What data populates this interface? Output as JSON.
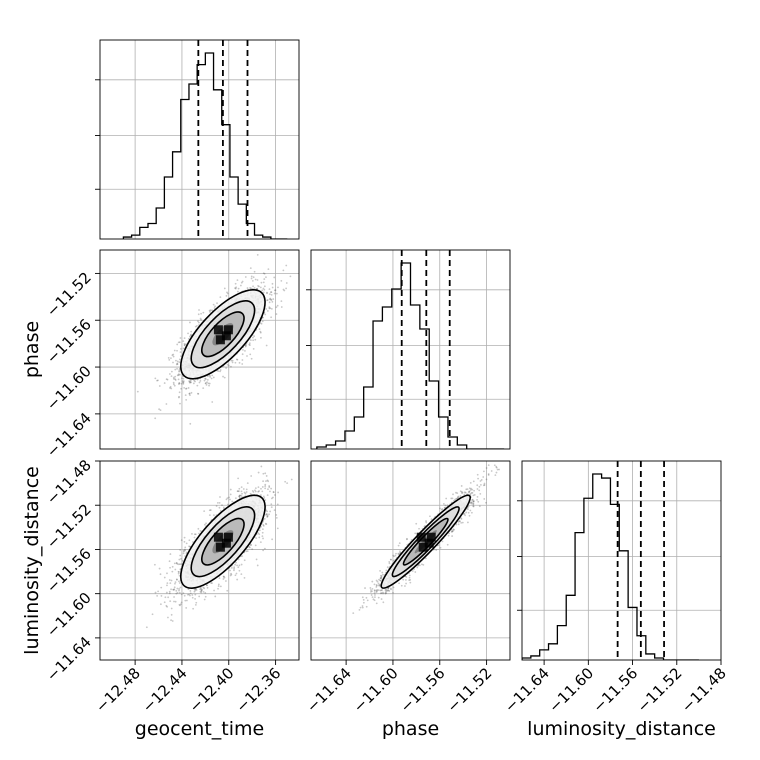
{
  "chart_data": {
    "type": "corner",
    "parameters": [
      "geocent_time",
      "phase",
      "luminosity_distance"
    ],
    "axes": {
      "geocent_time": {
        "range": [
          -12.51,
          -12.34
        ],
        "ticks": [
          -12.48,
          -12.44,
          -12.4,
          -12.36
        ],
        "tick_labels": [
          "−12.48",
          "−12.44",
          "−12.40",
          "−12.36"
        ]
      },
      "phase": {
        "range": [
          -11.67,
          -11.5
        ],
        "ticks": [
          -11.64,
          -11.6,
          -11.56,
          -11.52
        ],
        "tick_labels": [
          "−11.64",
          "−11.60",
          "−11.56",
          "−11.52"
        ]
      },
      "luminosity_distance": {
        "range": [
          -11.66,
          -11.48
        ],
        "ticks": [
          -11.64,
          -11.6,
          -11.56,
          -11.52,
          -11.48
        ],
        "tick_labels": [
          "−11.64",
          "−11.60",
          "−11.56",
          "−11.52",
          "−11.48"
        ]
      }
    },
    "histograms": [
      {
        "parameter": "geocent_time",
        "bin_edges_range": [
          -12.49,
          -12.35
        ],
        "bins": 20,
        "counts": [
          1,
          2,
          6,
          8,
          16,
          32,
          45,
          72,
          80,
          90,
          96,
          77,
          59,
          32,
          18,
          8,
          2,
          1,
          0,
          0
        ],
        "quantiles": [
          -12.426,
          -12.405,
          -12.384
        ]
      },
      {
        "parameter": "phase",
        "bin_edges_range": [
          -11.665,
          -11.505
        ],
        "bins": 20,
        "counts": [
          1,
          2,
          4,
          9,
          16,
          31,
          64,
          71,
          80,
          93,
          72,
          60,
          34,
          16,
          6,
          2,
          0,
          0,
          0,
          0
        ],
        "quantiles": [
          -11.5925,
          -11.5715,
          -11.5515
        ]
      },
      {
        "parameter": "luminosity_distance",
        "bin_edges_range": [
          -11.66,
          -11.5
        ],
        "bins": 20,
        "counts": [
          1,
          2,
          5,
          8,
          17,
          32,
          63,
          80,
          92,
          90,
          77,
          54,
          26,
          12,
          3,
          1,
          0,
          0,
          0,
          0
        ],
        "quantiles": [
          -11.5735,
          -11.5525,
          -11.5315
        ]
      },
      "__end__"
    ],
    "pairs": [
      {
        "x": "geocent_time",
        "y": "phase",
        "mean": [
          -12.405,
          -11.572
        ],
        "std": [
          0.018,
          0.019
        ],
        "correlation": 0.72,
        "n_samples": 2500
      },
      {
        "x": "geocent_time",
        "y": "luminosity_distance",
        "mean": [
          -12.405,
          -11.553
        ],
        "std": [
          0.018,
          0.021
        ],
        "correlation": 0.75,
        "n_samples": 2500
      },
      {
        "x": "phase",
        "y": "luminosity_distance",
        "mean": [
          -11.572,
          -11.553
        ],
        "std": [
          0.019,
          0.021
        ],
        "correlation": 0.95,
        "n_samples": 2500
      }
    ],
    "contour_levels_sigma": [
      0.5,
      1.0,
      1.5,
      2.0
    ],
    "grid": true,
    "colors": {
      "line": "#000000",
      "grid": "#b0b0b0",
      "points": "#555555"
    }
  }
}
